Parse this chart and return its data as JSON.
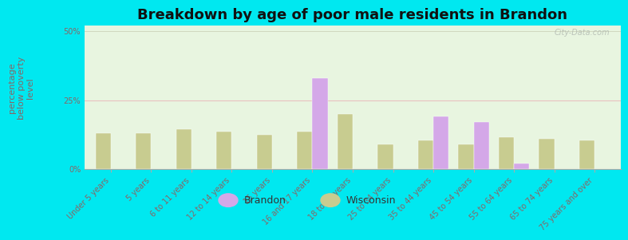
{
  "title": "Breakdown by age of poor male residents in Brandon",
  "ylabel": "percentage\nbelow poverty\nlevel",
  "categories": [
    "Under 5 years",
    "5 years",
    "6 to 11 years",
    "12 to 14 years",
    "15 years",
    "16 and 17 years",
    "18 to 24 years",
    "25 to 34 years",
    "35 to 44 years",
    "45 to 54 years",
    "55 to 64 years",
    "65 to 74 years",
    "75 years and over"
  ],
  "brandon_values": [
    null,
    null,
    null,
    null,
    null,
    33.0,
    null,
    null,
    19.0,
    17.0,
    2.0,
    null,
    null
  ],
  "wisconsin_values": [
    13.0,
    13.0,
    14.5,
    13.5,
    12.5,
    13.5,
    20.0,
    9.0,
    10.5,
    9.0,
    11.5,
    11.0,
    10.5
  ],
  "brandon_color": "#d4a8e8",
  "wisconsin_color": "#c8cc90",
  "ylim": [
    0,
    52
  ],
  "yticks": [
    0,
    25,
    50
  ],
  "ytick_labels": [
    "0%",
    "25%",
    "50%"
  ],
  "title_fontsize": 13,
  "axis_label_fontsize": 8,
  "tick_fontsize": 7,
  "legend_fontsize": 9,
  "bar_width": 0.38,
  "outer_bg": "#00e8f0",
  "plot_bg": "#e8f5e0",
  "watermark": "City-Data.com",
  "ylabel_color": "#886666",
  "tick_color": "#886666",
  "grid_color": "#d0d8c0",
  "spine_color": "#aaaaaa"
}
